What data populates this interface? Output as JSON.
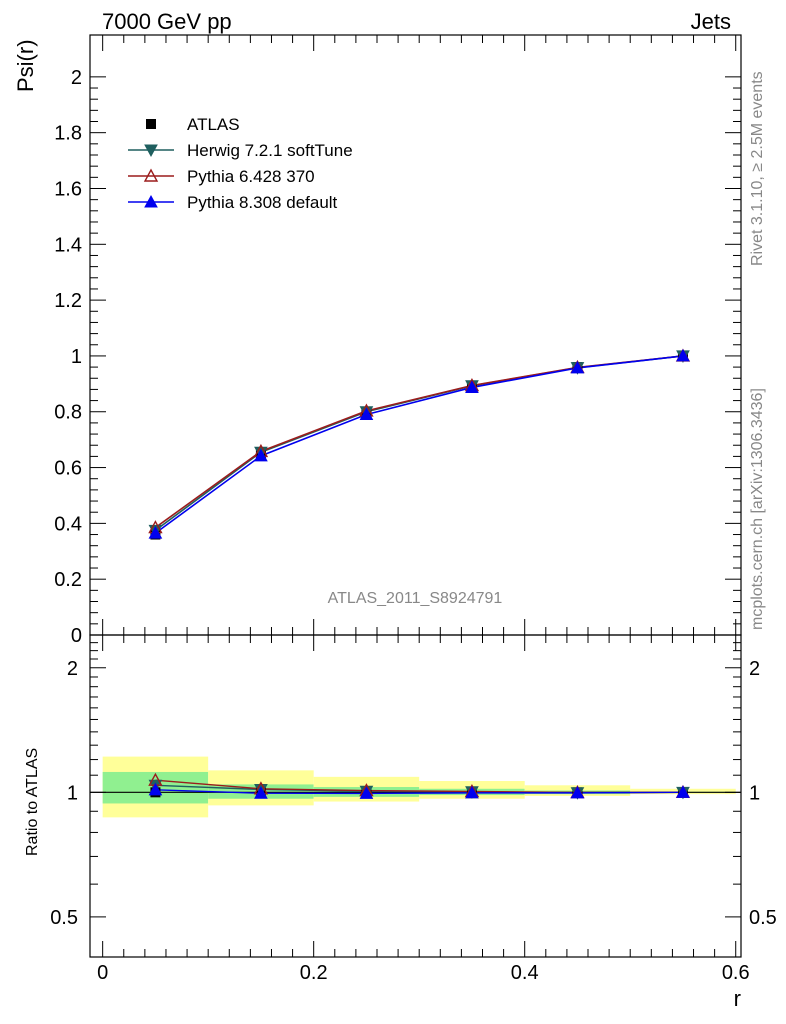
{
  "header": {
    "left": "7000 GeV pp",
    "right": "Jets"
  },
  "side_labels": {
    "rivet": "Rivet 3.1.10, ≥ 2.5M events",
    "mcplots": "mcplots.cern.ch [arXiv:1306.3436]"
  },
  "analysis_label": "ATLAS_2011_S8924791",
  "colors": {
    "atlas": "#000000",
    "herwig": "#1f5f5f",
    "pythia6": "#9b1c1c",
    "pythia8": "#0000ee",
    "band_inner": "#90f090",
    "band_outer": "#ffff99"
  },
  "chart_data": [
    {
      "type": "line",
      "panel": "main",
      "ylabel": "Psi(r)",
      "xlabel": "r",
      "xlim": [
        -0.012,
        0.605
      ],
      "ylim": [
        0,
        2.15
      ],
      "y_ticks": [
        0,
        0.2,
        0.4,
        0.6,
        0.8,
        1,
        1.2,
        1.4,
        1.6,
        1.8,
        2
      ],
      "y_tick_labels": [
        "0",
        "0.2",
        "0.4",
        "0.6",
        "0.8",
        "1",
        "1.2",
        "1.4",
        "1.6",
        "1.8",
        "2"
      ],
      "x": [
        0.05,
        0.15,
        0.25,
        0.35,
        0.45,
        0.55
      ],
      "legend_position": "top-left",
      "series": [
        {
          "name": "ATLAS",
          "marker": "square",
          "color": "#000000",
          "line": false,
          "values": [
            0.36,
            0.645,
            0.795,
            0.89,
            0.96,
            1.0
          ]
        },
        {
          "name": "Herwig 7.2.1 softTune",
          "marker": "triangle-down",
          "color": "#1f5f5f",
          "line": true,
          "values": [
            0.375,
            0.655,
            0.8,
            0.893,
            0.958,
            1.0
          ]
        },
        {
          "name": "Pythia 6.428 370",
          "marker": "triangle-up-open",
          "color": "#9b1c1c",
          "line": true,
          "values": [
            0.385,
            0.658,
            0.803,
            0.894,
            0.959,
            1.0
          ]
        },
        {
          "name": "Pythia 8.308 default",
          "marker": "triangle-up",
          "color": "#0000ee",
          "line": true,
          "values": [
            0.365,
            0.642,
            0.79,
            0.887,
            0.957,
            1.0
          ]
        }
      ]
    },
    {
      "type": "line",
      "panel": "ratio",
      "ylabel": "Ratio to ATLAS",
      "xlabel": "r",
      "log_scale_y": true,
      "xlim": [
        -0.012,
        0.605
      ],
      "ylim": [
        0.4,
        2.4
      ],
      "y_ticks": [
        0.5,
        1,
        2
      ],
      "y_tick_labels": [
        "0.5",
        "1",
        "2"
      ],
      "x_ticks": [
        0,
        0.2,
        0.4,
        0.6
      ],
      "x_tick_labels": [
        "0",
        "0.2",
        "0.4",
        "0.6"
      ],
      "x": [
        0.05,
        0.15,
        0.25,
        0.35,
        0.45,
        0.55
      ],
      "bins": [
        [
          0.0,
          0.1
        ],
        [
          0.1,
          0.2
        ],
        [
          0.2,
          0.3
        ],
        [
          0.3,
          0.4
        ],
        [
          0.4,
          0.5
        ],
        [
          0.5,
          0.6
        ]
      ],
      "band_inner": [
        [
          0.94,
          1.12
        ],
        [
          0.965,
          1.045
        ],
        [
          0.975,
          1.03
        ],
        [
          0.985,
          1.02
        ],
        [
          0.99,
          1.01
        ],
        [
          0.997,
          1.003
        ]
      ],
      "band_outer": [
        [
          0.87,
          1.22
        ],
        [
          0.93,
          1.13
        ],
        [
          0.95,
          1.09
        ],
        [
          0.965,
          1.065
        ],
        [
          0.98,
          1.04
        ],
        [
          0.99,
          1.02
        ]
      ],
      "series": [
        {
          "name": "Herwig 7.2.1 softTune",
          "color": "#1f5f5f",
          "values": [
            1.04,
            1.016,
            1.006,
            1.003,
            0.998,
            1.0
          ]
        },
        {
          "name": "Pythia 6.428 370",
          "color": "#9b1c1c",
          "values": [
            1.07,
            1.02,
            1.01,
            1.005,
            0.999,
            1.0
          ]
        },
        {
          "name": "Pythia 8.308 default",
          "color": "#0000ee",
          "values": [
            1.014,
            0.995,
            0.994,
            0.997,
            0.997,
            1.0
          ]
        }
      ]
    }
  ]
}
